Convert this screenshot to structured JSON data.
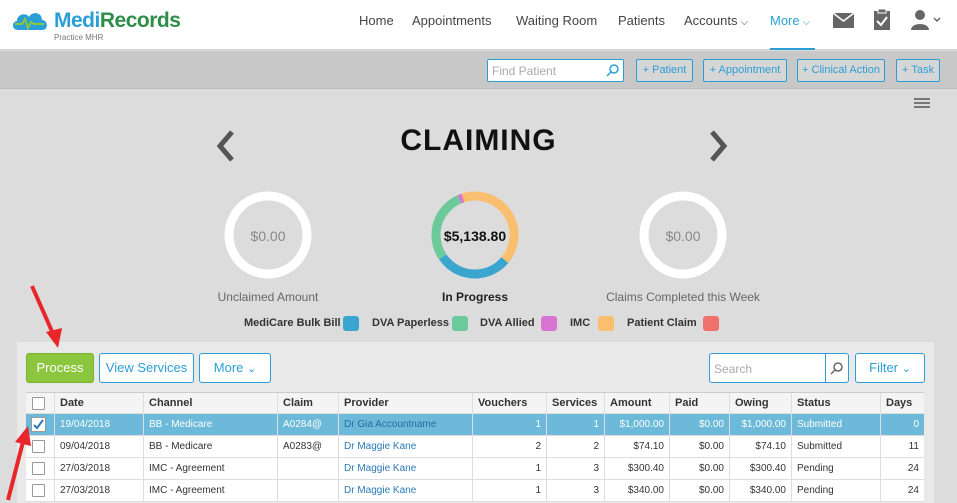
{
  "app": {
    "logo_part1": "Medi",
    "logo_part2": "Records",
    "logo_sub": "Practice MHR"
  },
  "nav": {
    "items": [
      {
        "label": "Home"
      },
      {
        "label": "Appointments"
      },
      {
        "label": "Waiting Room"
      },
      {
        "label": "Patients"
      },
      {
        "label": "Accounts"
      },
      {
        "label": "More"
      }
    ],
    "icons": [
      "mail-icon",
      "clipboard-check-icon",
      "user-icon"
    ]
  },
  "actionbar": {
    "find_placeholder": "Find Patient",
    "buttons": [
      "+ Patient",
      "+ Appointment",
      "+ Clinical Action",
      "+ Task"
    ]
  },
  "page": {
    "title": "CLAIMING"
  },
  "donuts": [
    {
      "value": "$0.00",
      "label": "Unclaimed Amount"
    },
    {
      "value": "$5,138.80",
      "label": "In Progress"
    },
    {
      "value": "$0.00",
      "label": "Claims Completed this Week"
    }
  ],
  "chart_data": {
    "type": "pie",
    "value_label": "$5,138.80",
    "label": "In Progress",
    "categories": [
      "MediCare Bulk Bill",
      "DVA Paperless",
      "DVA Allied",
      "IMC",
      "Patient Claim"
    ],
    "values": [
      29.4,
      27.8,
      1.6,
      41.2,
      0
    ],
    "colors": [
      "#3aa6d0",
      "#6cc99a",
      "#d874d4",
      "#f9bf6e",
      "#f0706a"
    ]
  },
  "legend": [
    {
      "label": "MediCare Bulk Bill",
      "color": "#3aa6d0"
    },
    {
      "label": "DVA Paperless",
      "color": "#6cc99a"
    },
    {
      "label": "DVA Allied",
      "color": "#d874d4"
    },
    {
      "label": "IMC",
      "color": "#f9bf6e"
    },
    {
      "label": "Patient Claim",
      "color": "#f0706a"
    }
  ],
  "toolbar": {
    "process": "Process",
    "view_services": "View Services",
    "more": "More",
    "search_placeholder": "Search",
    "filter": "Filter"
  },
  "table": {
    "headers": [
      "Date",
      "Channel",
      "Claim",
      "Provider",
      "Vouchers",
      "Services",
      "Amount",
      "Paid",
      "Owing",
      "Status",
      "Days"
    ],
    "rows": [
      {
        "checked": true,
        "date": "19/04/2018",
        "channel": "BB - Medicare",
        "claim": "A0284@",
        "provider": "Dr Gia Accountname",
        "vouchers": "1",
        "services": "1",
        "amount": "$1,000.00",
        "paid": "$0.00",
        "owing": "$1,000.00",
        "status": "Submitted",
        "days": "0"
      },
      {
        "checked": false,
        "date": "09/04/2018",
        "channel": "BB - Medicare",
        "claim": "A0283@",
        "provider": "Dr Maggie Kane",
        "vouchers": "2",
        "services": "2",
        "amount": "$74.10",
        "paid": "$0.00",
        "owing": "$74.10",
        "status": "Submitted",
        "days": "11"
      },
      {
        "checked": false,
        "date": "27/03/2018",
        "channel": "IMC - Agreement",
        "claim": "",
        "provider": "Dr Maggie Kane",
        "vouchers": "1",
        "services": "3",
        "amount": "$300.40",
        "paid": "$0.00",
        "owing": "$300.40",
        "status": "Pending",
        "days": "24"
      },
      {
        "checked": false,
        "date": "27/03/2018",
        "channel": "IMC - Agreement",
        "claim": "",
        "provider": "Dr Maggie Kane",
        "vouchers": "1",
        "services": "3",
        "amount": "$340.00",
        "paid": "$0.00",
        "owing": "$340.00",
        "status": "Pending",
        "days": "24"
      }
    ]
  }
}
